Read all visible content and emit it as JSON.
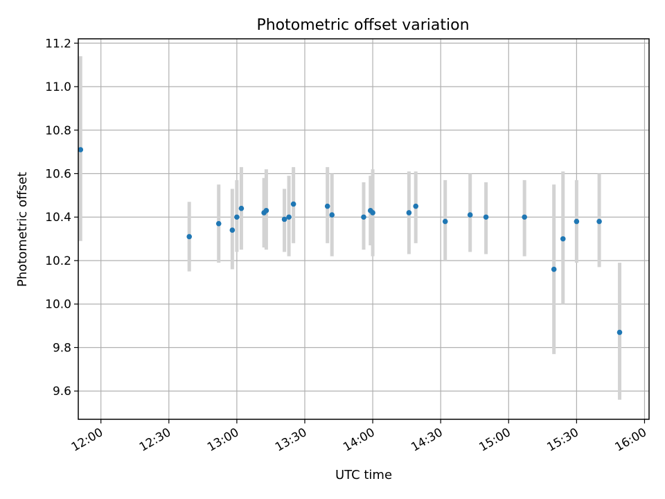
{
  "chart_data": {
    "type": "scatter",
    "title": "Photometric offset variation",
    "xlabel": "UTC time",
    "ylabel": "Photometric offset",
    "xlim": [
      "11:50",
      "16:02"
    ],
    "ylim": [
      9.47,
      11.22
    ],
    "xticks": [
      "12:00",
      "12:30",
      "13:00",
      "13:30",
      "14:00",
      "14:30",
      "15:00",
      "15:30",
      "16:00"
    ],
    "yticks": [
      9.6,
      9.8,
      10.0,
      10.2,
      10.4,
      10.6,
      10.8,
      11.0,
      11.2
    ],
    "grid": true,
    "colors": {
      "point": "#1f77b4",
      "error_bar": "#d3d3d3"
    },
    "points": [
      {
        "x": "11:51",
        "y": 10.71,
        "ylow": 10.29,
        "yhigh": 11.14
      },
      {
        "x": "12:39",
        "y": 10.31,
        "ylow": 10.15,
        "yhigh": 10.47
      },
      {
        "x": "12:52",
        "y": 10.37,
        "ylow": 10.19,
        "yhigh": 10.55
      },
      {
        "x": "12:58",
        "y": 10.34,
        "ylow": 10.16,
        "yhigh": 10.53
      },
      {
        "x": "13:00",
        "y": 10.4,
        "ylow": 10.24,
        "yhigh": 10.57
      },
      {
        "x": "13:02",
        "y": 10.44,
        "ylow": 10.25,
        "yhigh": 10.63
      },
      {
        "x": "13:12",
        "y": 10.42,
        "ylow": 10.26,
        "yhigh": 10.58
      },
      {
        "x": "13:13",
        "y": 10.43,
        "ylow": 10.25,
        "yhigh": 10.62
      },
      {
        "x": "13:21",
        "y": 10.39,
        "ylow": 10.24,
        "yhigh": 10.53
      },
      {
        "x": "13:23",
        "y": 10.4,
        "ylow": 10.22,
        "yhigh": 10.59
      },
      {
        "x": "13:25",
        "y": 10.46,
        "ylow": 10.28,
        "yhigh": 10.63
      },
      {
        "x": "13:40",
        "y": 10.45,
        "ylow": 10.28,
        "yhigh": 10.63
      },
      {
        "x": "13:42",
        "y": 10.41,
        "ylow": 10.22,
        "yhigh": 10.6
      },
      {
        "x": "13:56",
        "y": 10.4,
        "ylow": 10.25,
        "yhigh": 10.56
      },
      {
        "x": "13:59",
        "y": 10.43,
        "ylow": 10.27,
        "yhigh": 10.59
      },
      {
        "x": "14:00",
        "y": 10.42,
        "ylow": 10.22,
        "yhigh": 10.62
      },
      {
        "x": "14:16",
        "y": 10.42,
        "ylow": 10.23,
        "yhigh": 10.61
      },
      {
        "x": "14:19",
        "y": 10.45,
        "ylow": 10.28,
        "yhigh": 10.61
      },
      {
        "x": "14:32",
        "y": 10.38,
        "ylow": 10.2,
        "yhigh": 10.57
      },
      {
        "x": "14:43",
        "y": 10.41,
        "ylow": 10.24,
        "yhigh": 10.6
      },
      {
        "x": "14:50",
        "y": 10.4,
        "ylow": 10.23,
        "yhigh": 10.56
      },
      {
        "x": "15:07",
        "y": 10.4,
        "ylow": 10.22,
        "yhigh": 10.57
      },
      {
        "x": "15:20",
        "y": 10.16,
        "ylow": 9.77,
        "yhigh": 10.55
      },
      {
        "x": "15:24",
        "y": 10.3,
        "ylow": 10.0,
        "yhigh": 10.61
      },
      {
        "x": "15:30",
        "y": 10.38,
        "ylow": 10.19,
        "yhigh": 10.57
      },
      {
        "x": "15:40",
        "y": 10.38,
        "ylow": 10.17,
        "yhigh": 10.6
      },
      {
        "x": "15:49",
        "y": 9.87,
        "ylow": 9.56,
        "yhigh": 10.19
      }
    ]
  }
}
